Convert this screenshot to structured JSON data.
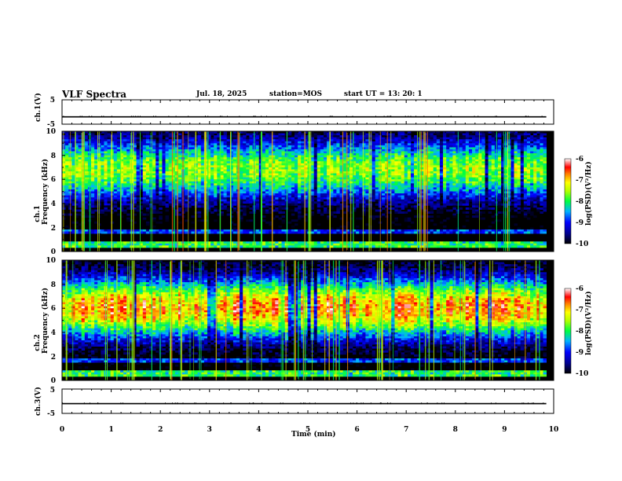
{
  "header": {
    "title": "VLF Spectra",
    "date": "Jul. 18, 2025",
    "station": "station=MOS",
    "start": "start  UT  =   13: 20: 1"
  },
  "chart_data": [
    {
      "type": "line",
      "name": "ch1-waveform",
      "ylabel": "ch.1(V)",
      "ylim": [
        -5,
        5
      ],
      "yticks": [
        "5",
        "-5"
      ],
      "baseline": -2
    },
    {
      "type": "heatmap",
      "name": "ch1-spectrogram",
      "ylabel": "ch.1 Frequency (kHz)",
      "ylim": [
        0,
        10
      ],
      "yticks": [
        "0",
        "2",
        "4",
        "6",
        "8",
        "10"
      ],
      "xlim": [
        0,
        10
      ],
      "band_center_khz": 6.8,
      "band_level_log": -7.6,
      "colorbar": {
        "label": "log(PSD)(V²/Hz)",
        "range": [
          -10,
          -6
        ],
        "ticks": [
          "-6",
          "-7",
          "-8",
          "-9",
          "-10"
        ]
      }
    },
    {
      "type": "heatmap",
      "name": "ch2-spectrogram",
      "ylabel": "ch.2 Frequency (kHz)",
      "ylim": [
        0,
        10
      ],
      "yticks": [
        "0",
        "2",
        "4",
        "6",
        "8",
        "10"
      ],
      "xlim": [
        0,
        10
      ],
      "band_center_khz": 6.0,
      "band_level_log": -6.8,
      "colorbar": {
        "label": "log(PSD)(V²/Hz)",
        "range": [
          -10,
          -6
        ],
        "ticks": [
          "-6",
          "-7",
          "-8",
          "-9",
          "-10"
        ]
      }
    },
    {
      "type": "line",
      "name": "ch3-waveform",
      "ylabel": "ch.3(V)",
      "ylim": [
        -5,
        5
      ],
      "yticks": [
        "5",
        "-5"
      ],
      "baseline": -1
    }
  ],
  "xaxis": {
    "label": "Time  (min)",
    "range": [
      0,
      10
    ],
    "ticks": [
      "0",
      "1",
      "2",
      "3",
      "4",
      "5",
      "6",
      "7",
      "8",
      "9",
      "10"
    ]
  }
}
